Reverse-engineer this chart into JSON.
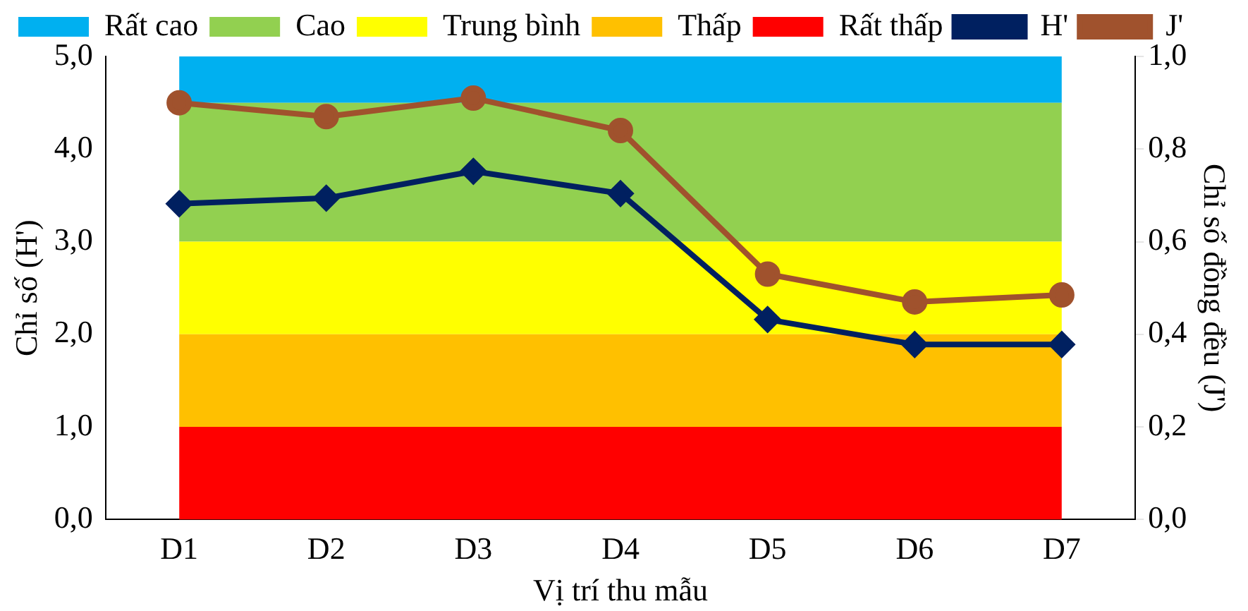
{
  "chart_data": {
    "type": "line",
    "xlabel": "Vị trí thu mẫu",
    "ylabel": "Chỉ số (H')",
    "y2label": "Chỉ số đồng đều (J')",
    "categories": [
      "D1",
      "D2",
      "D3",
      "D4",
      "D5",
      "D6",
      "D7"
    ],
    "stacked": true,
    "legend": "top",
    "grid": false,
    "ylim": [
      0,
      5
    ],
    "yticks": [
      {
        "value": 0,
        "label": "0,0"
      },
      {
        "value": 1,
        "label": "1,0"
      },
      {
        "value": 2,
        "label": "2,0"
      },
      {
        "value": 3,
        "label": "3,0"
      },
      {
        "value": 4,
        "label": "4,0"
      },
      {
        "value": 5,
        "label": "5,0"
      }
    ],
    "y2lim": [
      0,
      1
    ],
    "y2ticks": [
      {
        "value": 0,
        "label": "0,0"
      },
      {
        "value": 0.2,
        "label": "0,2"
      },
      {
        "value": 0.4,
        "label": "0,4"
      },
      {
        "value": 0.6,
        "label": "0,6"
      },
      {
        "value": 0.8,
        "label": "0,8"
      },
      {
        "value": 1,
        "label": "1,0"
      }
    ],
    "series": [
      {
        "name": "Rất cao",
        "type": "area",
        "color": "#00b0f0",
        "values": [
          0.5,
          0.5,
          0.5,
          0.5,
          0.5,
          0.5,
          0.5
        ]
      },
      {
        "name": "Cao",
        "type": "area",
        "color": "#92d050",
        "values": [
          1.5,
          1.5,
          1.5,
          1.5,
          1.5,
          1.5,
          1.5
        ]
      },
      {
        "name": "Trung bình",
        "type": "area",
        "color": "#ffff00",
        "values": [
          1,
          1,
          1,
          1,
          1,
          1,
          1
        ]
      },
      {
        "name": "Thấp",
        "type": "area",
        "color": "#ffc000",
        "values": [
          1,
          1,
          1,
          1,
          1,
          1,
          1
        ]
      },
      {
        "name": "Rất thấp",
        "type": "area",
        "color": "#ff0000",
        "values": [
          1,
          1,
          1,
          1,
          1,
          1,
          1
        ]
      },
      {
        "name": "H'",
        "color": "#002060",
        "marker": "diamond",
        "values": [
          3.41,
          3.47,
          3.76,
          3.52,
          2.16,
          1.89,
          1.89
        ]
      },
      {
        "name": "J'",
        "axis": "y2",
        "color": "#a0522d",
        "marker": "circle",
        "values": [
          0.9,
          0.87,
          0.91,
          0.84,
          0.53,
          0.47,
          0.485
        ]
      }
    ]
  }
}
